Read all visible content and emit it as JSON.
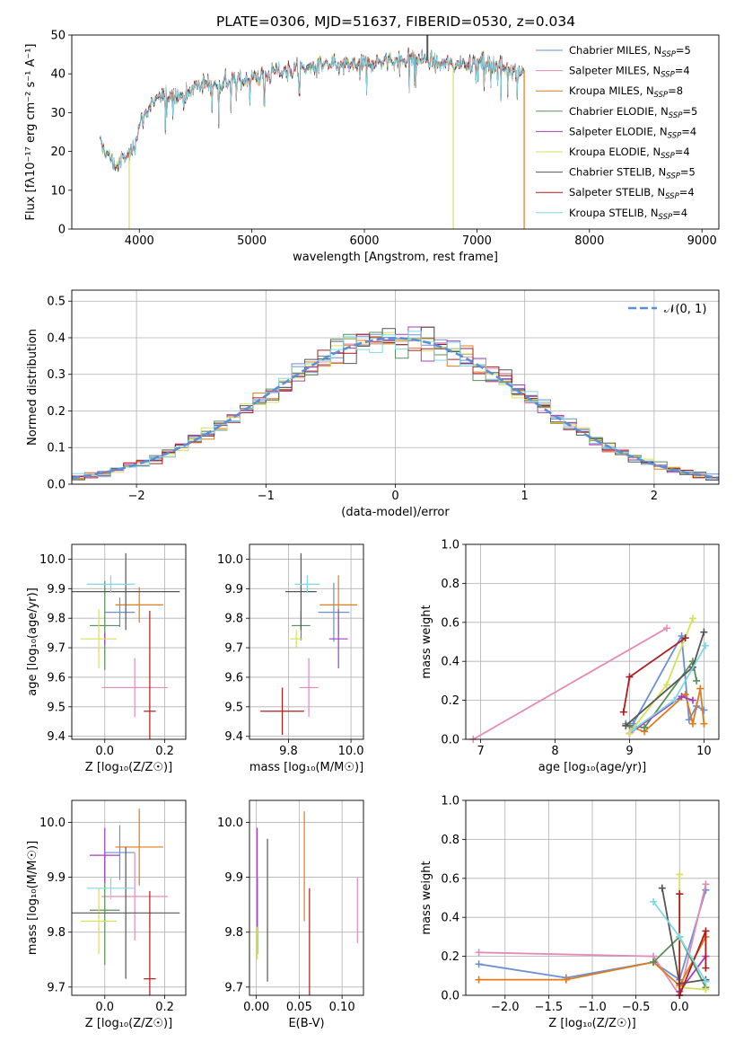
{
  "figure_title": "PLATE=0306, MJD=51637, FIBERID=0530, z=0.034",
  "series_colors": {
    "Chabrier MILES": "#6b8fd6",
    "Salpeter MILES": "#e68ab8",
    "Kroupa MILES": "#e07b1a",
    "Chabrier ELODIE": "#5a8f5a",
    "Salpeter ELODIE": "#a23fc0",
    "Kroupa ELODIE": "#d6e05a",
    "Chabrier STELIB": "#555555",
    "Salpeter STELIB": "#b01c1c",
    "Kroupa STELIB": "#7fd8e6"
  },
  "chart_data": [
    {
      "id": "spectrum",
      "type": "line",
      "xlabel": "wavelength [Angstrom, rest frame]",
      "ylabel": "Flux [fλ10⁻¹⁷ erg cm⁻² s⁻¹ A⁻¹]",
      "xlim": [
        3400,
        9150
      ],
      "ylim": [
        0,
        50
      ],
      "xticks": [
        4000,
        5000,
        6000,
        7000,
        8000,
        9000
      ],
      "yticks": [
        0,
        10,
        20,
        30,
        40,
        50
      ],
      "grid": false,
      "legend_position": "upper-right",
      "legend": [
        {
          "name": "Chabrier MILES, N",
          "sub": "SSP",
          "suffix": "=5"
        },
        {
          "name": "Salpeter MILES, N",
          "sub": "SSP",
          "suffix": "=4"
        },
        {
          "name": "Kroupa MILES, N",
          "sub": "SSP",
          "suffix": "=8"
        },
        {
          "name": "Chabrier ELODIE, N",
          "sub": "SSP",
          "suffix": "=5"
        },
        {
          "name": "Salpeter ELODIE, N",
          "sub": "SSP",
          "suffix": "=4"
        },
        {
          "name": "Kroupa ELODIE, N",
          "sub": "SSP",
          "suffix": "=4"
        },
        {
          "name": "Chabrier STELIB, N",
          "sub": "SSP",
          "suffix": "=5"
        },
        {
          "name": "Salpeter STELIB, N",
          "sub": "SSP",
          "suffix": "=4"
        },
        {
          "name": "Kroupa STELIB, N",
          "sub": "SSP",
          "suffix": "=4"
        }
      ],
      "continuum": [
        [
          3650,
          22
        ],
        [
          3700,
          20
        ],
        [
          3750,
          18
        ],
        [
          3800,
          16
        ],
        [
          3850,
          18
        ],
        [
          3900,
          19
        ],
        [
          3950,
          21
        ],
        [
          4000,
          27
        ],
        [
          4100,
          32
        ],
        [
          4200,
          34
        ],
        [
          4300,
          35
        ],
        [
          4400,
          34
        ],
        [
          4500,
          37
        ],
        [
          4600,
          37.5
        ],
        [
          4700,
          37
        ],
        [
          4800,
          38
        ],
        [
          4900,
          38.5
        ],
        [
          5000,
          39
        ],
        [
          5100,
          39.5
        ],
        [
          5200,
          40.5
        ],
        [
          5300,
          41
        ],
        [
          5400,
          41
        ],
        [
          5500,
          41.5
        ],
        [
          5600,
          42
        ],
        [
          5700,
          42
        ],
        [
          5800,
          42
        ],
        [
          5900,
          42.5
        ],
        [
          6000,
          42.5
        ],
        [
          6100,
          43
        ],
        [
          6200,
          43.5
        ],
        [
          6300,
          43.5
        ],
        [
          6400,
          44
        ],
        [
          6500,
          44
        ],
        [
          6600,
          43
        ],
        [
          6700,
          42.5
        ],
        [
          6800,
          42.5
        ],
        [
          6900,
          43
        ],
        [
          7000,
          43
        ],
        [
          7100,
          42.5
        ],
        [
          7200,
          42
        ],
        [
          7300,
          41.5
        ],
        [
          7400,
          41
        ]
      ],
      "spikes": [
        {
          "series": "Kroupa ELODIE",
          "x": 3910,
          "ymin": 0
        },
        {
          "series": "Kroupa ELODIE",
          "x": 6790,
          "ymin": 0
        },
        {
          "series": "Kroupa MILES",
          "x": 7420,
          "ymin": 0
        },
        {
          "series": "Chabrier STELIB",
          "x": 6560,
          "ymax": 50
        }
      ]
    },
    {
      "id": "residuals",
      "type": "histogram",
      "xlabel": "(data-model)/error",
      "ylabel": "Normed distribution",
      "xlim": [
        -2.5,
        2.5
      ],
      "ylim": [
        0,
        0.53
      ],
      "xticks": [
        -2,
        -1,
        0,
        1,
        2
      ],
      "xtick_labels": [
        "−2",
        "−1",
        "0",
        "1",
        "2"
      ],
      "yticks": [
        0,
        0.1,
        0.2,
        0.3,
        0.4,
        0.5
      ],
      "ytick_labels": [
        "0.0",
        "0.1",
        "0.2",
        "0.3",
        "0.4",
        "0.5"
      ],
      "grid": true,
      "bin_width": 0.1,
      "legend_position": "upper-right",
      "legend": [
        {
          "name": "𝒩(0, 1)"
        }
      ],
      "reference_curve": "N(0,1)"
    },
    {
      "id": "age-vs-Z",
      "type": "errorbar",
      "xlabel": "Z [log₁₀(Z/Z☉)]",
      "ylabel": "age  [log₁₀(age/yr)]",
      "xlim": [
        -0.11,
        0.27
      ],
      "ylim": [
        9.39,
        10.05
      ],
      "xticks": [
        0.0,
        0.2
      ],
      "xtick_labels": [
        "0.0",
        "0.2"
      ],
      "yticks": [
        9.4,
        9.5,
        9.6,
        9.7,
        9.8,
        9.9,
        10.0
      ],
      "ytick_labels": [
        "9.4",
        "9.5",
        "9.6",
        "9.7",
        "9.8",
        "9.9",
        "10.0"
      ],
      "grid": true,
      "points": [
        {
          "series": "Chabrier MILES",
          "x": 0.05,
          "xerr": 0.05,
          "y": 9.82,
          "yerr": 0.05
        },
        {
          "series": "Salpeter MILES",
          "x": 0.1,
          "xerr": 0.11,
          "y": 9.565,
          "yerr": 0.1
        },
        {
          "series": "Kroupa MILES",
          "x": 0.115,
          "xerr": 0.08,
          "y": 9.845,
          "yerr": 0.06
        },
        {
          "series": "Chabrier ELODIE",
          "x": 0.0,
          "xerr": 0.05,
          "y": 9.775,
          "yerr": 0.15
        },
        {
          "series": "Salpeter ELODIE",
          "x": 0.0,
          "xerr": 0.0,
          "y": 9.73,
          "yerr": 0.02
        },
        {
          "series": "Kroupa ELODIE",
          "x": -0.02,
          "xerr": 0.06,
          "y": 9.73,
          "yerr": 0.1
        },
        {
          "series": "Chabrier STELIB",
          "x": 0.07,
          "xerr": 0.18,
          "y": 9.89,
          "yerr": 0.13
        },
        {
          "series": "Salpeter STELIB",
          "x": 0.15,
          "xerr": 0.02,
          "y": 9.485,
          "yerr": 0.34
        },
        {
          "series": "Kroupa STELIB",
          "x": 0.02,
          "xerr": 0.08,
          "y": 9.915,
          "yerr": 0.03
        }
      ]
    },
    {
      "id": "age-vs-mass",
      "type": "errorbar",
      "xlabel": "mass [log₁₀(M/M☉)]",
      "ylabel": "",
      "xlim": [
        9.675,
        10.04
      ],
      "ylim": [
        9.39,
        10.05
      ],
      "xticks": [
        9.8,
        10.0
      ],
      "xtick_labels": [
        "9.8",
        "10.0"
      ],
      "yticks": [
        9.4,
        9.5,
        9.6,
        9.7,
        9.8,
        9.9,
        10.0
      ],
      "ytick_labels": [
        "9.4",
        "9.5",
        "9.6",
        "9.7",
        "9.8",
        "9.9",
        "10.0"
      ],
      "grid": true,
      "points": [
        {
          "series": "Chabrier MILES",
          "x": 9.945,
          "xerr": 0.05,
          "y": 9.82,
          "yerr": 0.1
        },
        {
          "series": "Salpeter MILES",
          "x": 9.865,
          "xerr": 0.03,
          "y": 9.565,
          "yerr": 0.1
        },
        {
          "series": "Kroupa MILES",
          "x": 9.96,
          "xerr": 0.06,
          "y": 9.845,
          "yerr": 0.1
        },
        {
          "series": "Chabrier ELODIE",
          "x": 9.84,
          "xerr": 0.03,
          "y": 9.775,
          "yerr": 0.05
        },
        {
          "series": "Salpeter ELODIE",
          "x": 9.96,
          "xerr": 0.03,
          "y": 9.73,
          "yerr": 0.1
        },
        {
          "series": "Kroupa ELODIE",
          "x": 9.825,
          "xerr": 0.02,
          "y": 9.73,
          "yerr": 0.03
        },
        {
          "series": "Chabrier STELIB",
          "x": 9.84,
          "xerr": 0.05,
          "y": 9.89,
          "yerr": 0.13
        },
        {
          "series": "Salpeter STELIB",
          "x": 9.78,
          "xerr": 0.07,
          "y": 9.485,
          "yerr": 0.08
        },
        {
          "series": "Kroupa STELIB",
          "x": 9.86,
          "xerr": 0.04,
          "y": 9.915,
          "yerr": 0.03
        }
      ]
    },
    {
      "id": "mass-weight-vs-age",
      "type": "line",
      "xlabel": "age  [log₁₀(age/yr)]",
      "ylabel": "mass weight",
      "xlim": [
        6.8,
        10.2
      ],
      "ylim": [
        0,
        1
      ],
      "xticks": [
        7,
        8,
        9,
        10
      ],
      "xtick_labels": [
        "7",
        "8",
        "9",
        "10"
      ],
      "yticks": [
        0,
        0.2,
        0.4,
        0.6,
        0.8,
        1.0
      ],
      "ytick_labels": [
        "0.0",
        "0.2",
        "0.4",
        "0.6",
        "0.8",
        "1.0"
      ],
      "grid": true,
      "series": [
        {
          "name": "Chabrier MILES",
          "x": [
            8.95,
            9.05,
            9.7,
            9.8,
            9.9,
            10.0
          ],
          "y": [
            0.08,
            0.08,
            0.53,
            0.1,
            0.17,
            0.15
          ]
        },
        {
          "name": "Salpeter MILES",
          "x": [
            6.9,
            9.5
          ],
          "y": [
            0.0,
            0.57
          ]
        },
        {
          "name": "Kroupa MILES",
          "x": [
            8.95,
            9.2,
            9.75,
            9.85,
            9.95,
            10.0
          ],
          "y": [
            0.07,
            0.04,
            0.23,
            0.08,
            0.26,
            0.08
          ]
        },
        {
          "name": "Chabrier ELODIE",
          "x": [
            9.0,
            9.2,
            9.85,
            9.9
          ],
          "y": [
            0.07,
            0.06,
            0.4,
            0.3
          ]
        },
        {
          "name": "Salpeter ELODIE",
          "x": [
            9.0,
            9.7,
            9.85
          ],
          "y": [
            0.03,
            0.22,
            0.2
          ]
        },
        {
          "name": "Kroupa ELODIE",
          "x": [
            9.0,
            9.5,
            9.85
          ],
          "y": [
            0.03,
            0.28,
            0.62
          ]
        },
        {
          "name": "Chabrier STELIB",
          "x": [
            8.95,
            9.85,
            10.0
          ],
          "y": [
            0.07,
            0.37,
            0.55
          ]
        },
        {
          "name": "Salpeter STELIB",
          "x": [
            8.92,
            9.0,
            9.75
          ],
          "y": [
            0.14,
            0.32,
            0.52
          ]
        },
        {
          "name": "Kroupa STELIB",
          "x": [
            9.05,
            9.6,
            10.02
          ],
          "y": [
            0.05,
            0.2,
            0.48
          ]
        }
      ]
    },
    {
      "id": "mass-vs-Z",
      "type": "errorbar",
      "xlabel": "Z [log₁₀(Z/Z☉)]",
      "ylabel": "mass [log₁₀(M/M☉)]",
      "xlim": [
        -0.11,
        0.27
      ],
      "ylim": [
        9.685,
        10.04
      ],
      "xticks": [
        0.0,
        0.2
      ],
      "xtick_labels": [
        "0.0",
        "0.2"
      ],
      "yticks": [
        9.7,
        9.8,
        9.9,
        10.0
      ],
      "ytick_labels": [
        "9.7",
        "9.8",
        "9.9",
        "10.0"
      ],
      "grid": true,
      "points": [
        {
          "series": "Chabrier MILES",
          "x": 0.05,
          "xerr": 0.05,
          "y": 9.945,
          "yerr": 0.05
        },
        {
          "series": "Salpeter MILES",
          "x": 0.1,
          "xerr": 0.11,
          "y": 9.865,
          "yerr": 0.08
        },
        {
          "series": "Kroupa MILES",
          "x": 0.115,
          "xerr": 0.08,
          "y": 9.955,
          "yerr": 0.07
        },
        {
          "series": "Chabrier ELODIE",
          "x": 0.0,
          "xerr": 0.05,
          "y": 9.84,
          "yerr": 0.1
        },
        {
          "series": "Salpeter ELODIE",
          "x": 0.0,
          "xerr": 0.05,
          "y": 9.94,
          "yerr": 0.05
        },
        {
          "series": "Kroupa ELODIE",
          "x": -0.02,
          "xerr": 0.06,
          "y": 9.82,
          "yerr": 0.06
        },
        {
          "series": "Chabrier STELIB",
          "x": 0.07,
          "xerr": 0.18,
          "y": 9.835,
          "yerr": 0.12
        },
        {
          "series": "Salpeter STELIB",
          "x": 0.15,
          "xerr": 0.02,
          "y": 9.715,
          "yerr": 0.16
        },
        {
          "series": "Kroupa STELIB",
          "x": 0.02,
          "xerr": 0.08,
          "y": 9.88,
          "yerr": 0.02
        }
      ]
    },
    {
      "id": "mass-vs-ebv",
      "type": "errorbar",
      "xlabel": "E(B-V)",
      "ylabel": "",
      "xlim": [
        -0.008,
        0.125
      ],
      "ylim": [
        9.685,
        10.04
      ],
      "xticks": [
        0.0,
        0.05,
        0.1
      ],
      "xtick_labels": [
        "0.00",
        "0.05",
        "0.10"
      ],
      "yticks": [
        9.7,
        9.8,
        9.9,
        10.0
      ],
      "ytick_labels": [
        "9.7",
        "9.8",
        "9.9",
        "10.0"
      ],
      "grid": true,
      "points": [
        {
          "series": "Kroupa ELODIE",
          "x": 0.001,
          "xerr": 0.0,
          "y": 9.81,
          "yerr": 0.06
        },
        {
          "series": "Salpeter ELODIE",
          "x": 0.001,
          "xerr": 0.0,
          "y": 9.9,
          "yerr": 0.09
        },
        {
          "series": "Kroupa STELIB",
          "x": 0.002,
          "xerr": 0.0,
          "y": 9.83,
          "yerr": 0.07
        },
        {
          "series": "Chabrier STELIB",
          "x": 0.013,
          "xerr": 0.0,
          "y": 9.84,
          "yerr": 0.13
        },
        {
          "series": "Kroupa MILES",
          "x": 0.056,
          "xerr": 0.0,
          "y": 9.92,
          "yerr": 0.1
        },
        {
          "series": "Salpeter STELIB",
          "x": 0.062,
          "xerr": 0.0,
          "y": 9.78,
          "yerr": 0.1
        },
        {
          "series": "Salpeter MILES",
          "x": 0.118,
          "xerr": 0.0,
          "y": 9.84,
          "yerr": 0.06
        }
      ]
    },
    {
      "id": "mass-weight-vs-Z",
      "type": "line",
      "xlabel": "Z [log₁₀(Z/Z☉)]",
      "ylabel": "mass weight",
      "xlim": [
        -2.45,
        0.45
      ],
      "ylim": [
        0,
        1
      ],
      "xticks": [
        -2.0,
        -1.5,
        -1.0,
        -0.5,
        0.0
      ],
      "xtick_labels": [
        "−2.0",
        "−1.5",
        "−1.0",
        "−0.5",
        "0.0"
      ],
      "yticks": [
        0,
        0.2,
        0.4,
        0.6,
        0.8,
        1.0
      ],
      "ytick_labels": [
        "0.0",
        "0.2",
        "0.4",
        "0.6",
        "0.8",
        "1.0"
      ],
      "grid": true,
      "series": [
        {
          "name": "Chabrier MILES",
          "x": [
            -2.3,
            -1.3,
            -0.3,
            0.0,
            0.3
          ],
          "y": [
            0.16,
            0.09,
            0.17,
            0.08,
            0.54
          ]
        },
        {
          "name": "Salpeter MILES",
          "x": [
            -2.3,
            -0.3,
            0.0,
            0.3
          ],
          "y": [
            0.22,
            0.2,
            0.0,
            0.57
          ]
        },
        {
          "name": "Kroupa MILES",
          "x": [
            -2.3,
            -1.3,
            -0.3,
            0.0,
            0.3
          ],
          "y": [
            0.08,
            0.08,
            0.17,
            0.05,
            0.3
          ]
        },
        {
          "name": "Chabrier ELODIE",
          "x": [
            -0.3,
            0.0,
            0.3
          ],
          "y": [
            0.17,
            0.3,
            0.04
          ]
        },
        {
          "name": "Salpeter ELODIE",
          "x": [
            0.0,
            0.3
          ],
          "y": [
            0.02,
            0.2
          ]
        },
        {
          "name": "Kroupa ELODIE",
          "x": [
            0.0,
            0.0,
            0.3
          ],
          "y": [
            0.62,
            0.04,
            0.03
          ]
        },
        {
          "name": "Chabrier STELIB",
          "x": [
            -0.2,
            0.0,
            0.3
          ],
          "y": [
            0.55,
            0.06,
            0.08
          ]
        },
        {
          "name": "Salpeter STELIB",
          "x": [
            0.0,
            0.0,
            0.3,
            0.3
          ],
          "y": [
            0.52,
            0.0,
            0.33,
            0.14
          ]
        },
        {
          "name": "Kroupa STELIB",
          "x": [
            -0.3,
            0.0,
            0.3
          ],
          "y": [
            0.48,
            0.3,
            0.07
          ]
        }
      ]
    }
  ]
}
